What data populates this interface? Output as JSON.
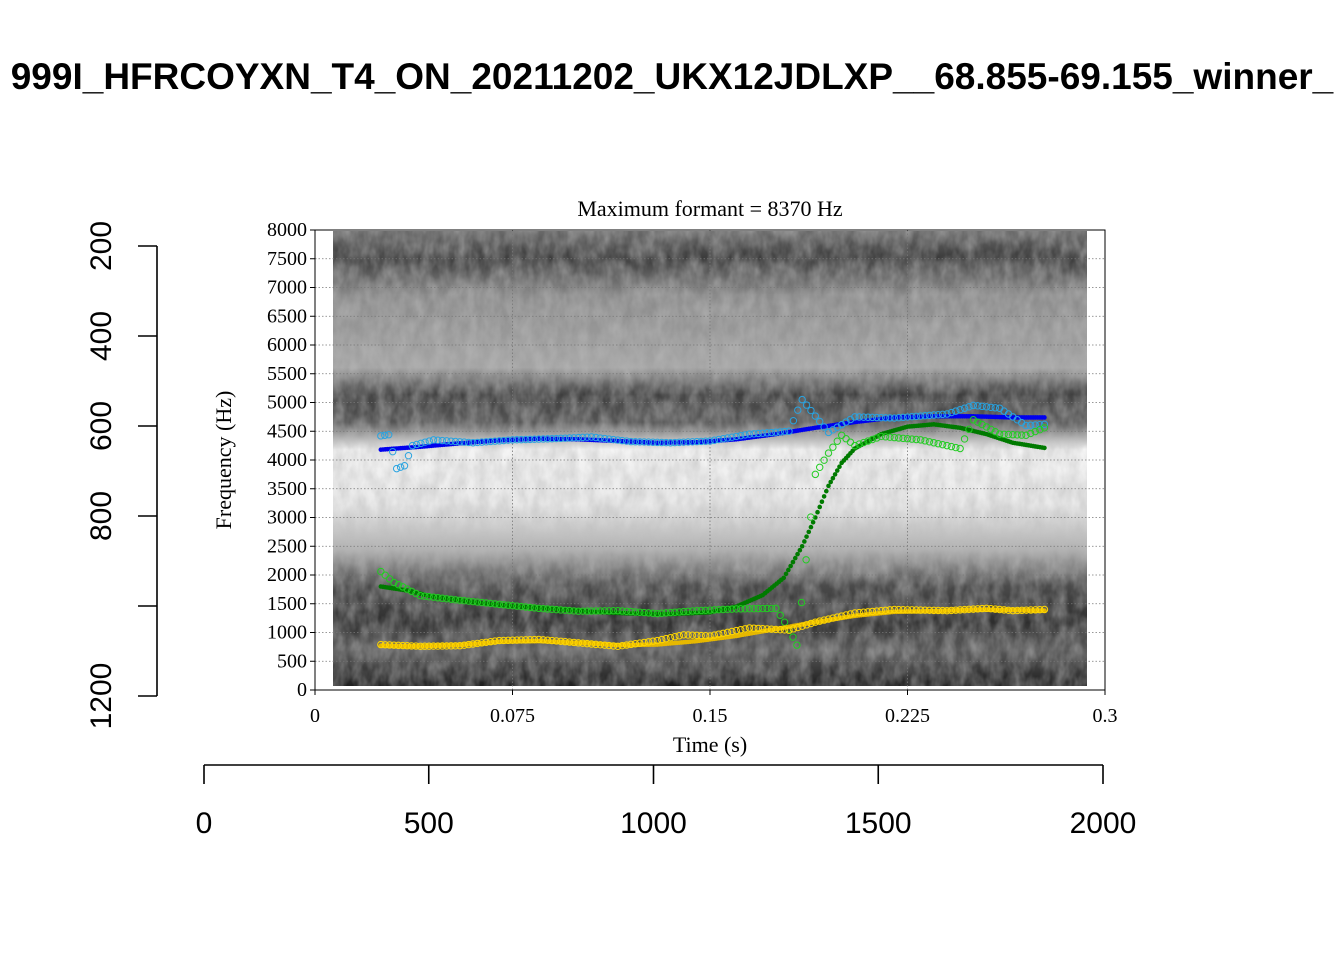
{
  "page_title": "999I_HFRCOYXN_T4_ON_20211202_UKX12JDLXP__68.855-69.155_winner_",
  "chart_data": {
    "type": "scatter",
    "title": "Maximum formant  =  8370 Hz",
    "xlabel": "Time (s)",
    "ylabel": "Frequency (Hz)",
    "xlim": [
      0,
      0.3
    ],
    "ylim": [
      0,
      8000
    ],
    "x_ticks": [
      0,
      0.075,
      0.15,
      0.225,
      0.3
    ],
    "x_tick_labels": [
      "0",
      "0.075",
      "0.15",
      "0.225",
      "0.3"
    ],
    "y_ticks": [
      0,
      500,
      1000,
      1500,
      2000,
      2500,
      3000,
      3500,
      4000,
      4500,
      5000,
      5500,
      6000,
      6500,
      7000,
      7500,
      8000
    ],
    "y_tick_labels": [
      "0",
      "500",
      "1000",
      "1500",
      "2000",
      "2500",
      "3000",
      "3500",
      "4000",
      "4500",
      "5000",
      "5500",
      "6000",
      "6500",
      "7000",
      "7500",
      "8000"
    ],
    "grid": true,
    "background": "spectrogram (grayscale)",
    "outer_axes": {
      "bottom": {
        "range": [
          0,
          2000
        ],
        "ticks": [
          0,
          500,
          1000,
          1500,
          2000
        ],
        "tick_labels": [
          "0",
          "500",
          "1000",
          "1500",
          "2000"
        ]
      },
      "left": {
        "range": [
          1200,
          0
        ],
        "ticks": [
          200,
          400,
          600,
          800,
          1000,
          1200
        ],
        "tick_labels": [
          "200",
          "400",
          "600",
          "800",
          "",
          "1200"
        ]
      }
    },
    "colors": {
      "F1_raw": "#ffd700",
      "F1_smooth": "#e6b800",
      "F2_raw": "#22cc22",
      "F2_smooth": "#007a00",
      "F3_raw": "#29a3e0",
      "F3_smooth": "#0000ee"
    },
    "series": [
      {
        "key": "F3_smooth",
        "style": "filled",
        "points": [
          [
            0.025,
            4180
          ],
          [
            0.04,
            4230
          ],
          [
            0.055,
            4290
          ],
          [
            0.07,
            4340
          ],
          [
            0.085,
            4370
          ],
          [
            0.1,
            4360
          ],
          [
            0.115,
            4330
          ],
          [
            0.13,
            4300
          ],
          [
            0.145,
            4310
          ],
          [
            0.16,
            4360
          ],
          [
            0.175,
            4450
          ],
          [
            0.19,
            4560
          ],
          [
            0.205,
            4660
          ],
          [
            0.22,
            4740
          ],
          [
            0.235,
            4760
          ],
          [
            0.25,
            4760
          ],
          [
            0.265,
            4740
          ],
          [
            0.277,
            4740
          ]
        ]
      },
      {
        "key": "F3_raw",
        "style": "hollow",
        "points": [
          [
            0.025,
            4420
          ],
          [
            0.028,
            4440
          ],
          [
            0.031,
            3850
          ],
          [
            0.034,
            3900
          ],
          [
            0.037,
            4250
          ],
          [
            0.045,
            4350
          ],
          [
            0.06,
            4300
          ],
          [
            0.075,
            4350
          ],
          [
            0.09,
            4370
          ],
          [
            0.105,
            4400
          ],
          [
            0.12,
            4320
          ],
          [
            0.135,
            4300
          ],
          [
            0.15,
            4330
          ],
          [
            0.165,
            4450
          ],
          [
            0.18,
            4500
          ],
          [
            0.185,
            5050
          ],
          [
            0.195,
            4480
          ],
          [
            0.205,
            4750
          ],
          [
            0.22,
            4730
          ],
          [
            0.24,
            4800
          ],
          [
            0.25,
            4950
          ],
          [
            0.26,
            4900
          ],
          [
            0.27,
            4600
          ],
          [
            0.277,
            4620
          ]
        ]
      },
      {
        "key": "F2_smooth",
        "style": "filled",
        "points": [
          [
            0.025,
            1800
          ],
          [
            0.035,
            1730
          ],
          [
            0.045,
            1620
          ],
          [
            0.06,
            1530
          ],
          [
            0.075,
            1460
          ],
          [
            0.09,
            1410
          ],
          [
            0.105,
            1360
          ],
          [
            0.12,
            1330
          ],
          [
            0.135,
            1320
          ],
          [
            0.15,
            1350
          ],
          [
            0.16,
            1450
          ],
          [
            0.17,
            1650
          ],
          [
            0.178,
            1950
          ],
          [
            0.185,
            2500
          ],
          [
            0.19,
            3000
          ],
          [
            0.195,
            3550
          ],
          [
            0.2,
            3950
          ],
          [
            0.205,
            4200
          ],
          [
            0.215,
            4450
          ],
          [
            0.225,
            4580
          ],
          [
            0.235,
            4620
          ],
          [
            0.245,
            4560
          ],
          [
            0.255,
            4450
          ],
          [
            0.265,
            4300
          ],
          [
            0.277,
            4210
          ]
        ]
      },
      {
        "key": "F2_raw",
        "style": "hollow",
        "points": [
          [
            0.025,
            2060
          ],
          [
            0.03,
            1870
          ],
          [
            0.04,
            1640
          ],
          [
            0.055,
            1560
          ],
          [
            0.07,
            1490
          ],
          [
            0.085,
            1420
          ],
          [
            0.1,
            1370
          ],
          [
            0.115,
            1380
          ],
          [
            0.13,
            1330
          ],
          [
            0.145,
            1380
          ],
          [
            0.16,
            1410
          ],
          [
            0.175,
            1420
          ],
          [
            0.18,
            1060
          ],
          [
            0.183,
            780
          ],
          [
            0.19,
            3750
          ],
          [
            0.195,
            4120
          ],
          [
            0.2,
            4430
          ],
          [
            0.205,
            4250
          ],
          [
            0.215,
            4410
          ],
          [
            0.23,
            4350
          ],
          [
            0.245,
            4200
          ],
          [
            0.25,
            4700
          ],
          [
            0.26,
            4450
          ],
          [
            0.27,
            4430
          ],
          [
            0.277,
            4560
          ]
        ]
      },
      {
        "key": "F1_smooth",
        "style": "filled",
        "points": [
          [
            0.025,
            770
          ],
          [
            0.04,
            760
          ],
          [
            0.055,
            780
          ],
          [
            0.07,
            840
          ],
          [
            0.085,
            850
          ],
          [
            0.1,
            820
          ],
          [
            0.115,
            780
          ],
          [
            0.13,
            790
          ],
          [
            0.145,
            850
          ],
          [
            0.16,
            940
          ],
          [
            0.175,
            1060
          ],
          [
            0.19,
            1180
          ],
          [
            0.205,
            1290
          ],
          [
            0.22,
            1360
          ],
          [
            0.235,
            1370
          ],
          [
            0.25,
            1400
          ],
          [
            0.265,
            1390
          ],
          [
            0.277,
            1380
          ]
        ]
      },
      {
        "key": "F1_raw",
        "style": "hollow",
        "points": [
          [
            0.025,
            790
          ],
          [
            0.04,
            760
          ],
          [
            0.055,
            770
          ],
          [
            0.07,
            860
          ],
          [
            0.085,
            880
          ],
          [
            0.1,
            820
          ],
          [
            0.115,
            760
          ],
          [
            0.13,
            860
          ],
          [
            0.14,
            960
          ],
          [
            0.15,
            940
          ],
          [
            0.165,
            1080
          ],
          [
            0.18,
            1040
          ],
          [
            0.19,
            1180
          ],
          [
            0.205,
            1340
          ],
          [
            0.22,
            1400
          ],
          [
            0.24,
            1380
          ],
          [
            0.255,
            1420
          ],
          [
            0.265,
            1380
          ],
          [
            0.277,
            1400
          ]
        ]
      }
    ]
  }
}
